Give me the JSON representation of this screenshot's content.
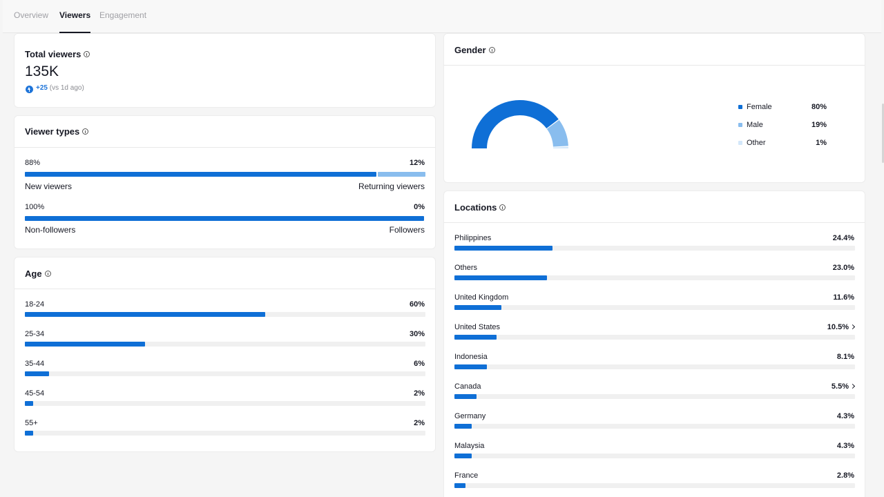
{
  "tabs": [
    {
      "label": "Overview",
      "active": false
    },
    {
      "label": "Viewers",
      "active": true
    },
    {
      "label": "Engagement",
      "active": false
    }
  ],
  "total_viewers": {
    "title": "Total viewers",
    "value": "135K",
    "delta": "+25",
    "delta_note": "(vs 1d ago)"
  },
  "viewer_types": {
    "title": "Viewer types",
    "rows": [
      {
        "left_pct": "88%",
        "right_pct": "12%",
        "left_label": "New viewers",
        "right_label": "Returning viewers",
        "fraction": 0.88
      },
      {
        "left_pct": "100%",
        "right_pct": "0%",
        "left_label": "Non-followers",
        "right_label": "Followers",
        "fraction": 1.0
      }
    ]
  },
  "age": {
    "title": "Age",
    "rows": [
      {
        "label": "18-24",
        "value": "60%",
        "fraction": 0.6
      },
      {
        "label": "25-34",
        "value": "30%",
        "fraction": 0.3
      },
      {
        "label": "35-44",
        "value": "6%",
        "fraction": 0.06
      },
      {
        "label": "45-54",
        "value": "2%",
        "fraction": 0.02
      },
      {
        "label": "55+",
        "value": "2%",
        "fraction": 0.02
      }
    ]
  },
  "gender": {
    "title": "Gender",
    "items": [
      {
        "label": "Female",
        "value": "80%",
        "color": "#0f6fd6",
        "fraction": 0.8
      },
      {
        "label": "Male",
        "value": "19%",
        "color": "#89bdee",
        "fraction": 0.19
      },
      {
        "label": "Other",
        "value": "1%",
        "color": "#d3e7fa",
        "fraction": 0.01
      }
    ]
  },
  "locations": {
    "title": "Locations",
    "rows": [
      {
        "label": "Philippines",
        "value": "24.4%",
        "fraction": 0.244,
        "expandable": false
      },
      {
        "label": "Others",
        "value": "23.0%",
        "fraction": 0.23,
        "expandable": false
      },
      {
        "label": "United Kingdom",
        "value": "11.6%",
        "fraction": 0.116,
        "expandable": false
      },
      {
        "label": "United States",
        "value": "10.5%",
        "fraction": 0.105,
        "expandable": true
      },
      {
        "label": "Indonesia",
        "value": "8.1%",
        "fraction": 0.081,
        "expandable": false
      },
      {
        "label": "Canada",
        "value": "5.5%",
        "fraction": 0.055,
        "expandable": true
      },
      {
        "label": "Germany",
        "value": "4.3%",
        "fraction": 0.043,
        "expandable": false
      },
      {
        "label": "Malaysia",
        "value": "4.3%",
        "fraction": 0.043,
        "expandable": false
      },
      {
        "label": "France",
        "value": "2.8%",
        "fraction": 0.028,
        "expandable": false
      }
    ]
  },
  "colors": {
    "accent": "#0f6fd6",
    "accent_light": "#89bdee",
    "track": "#f0f0f0"
  }
}
